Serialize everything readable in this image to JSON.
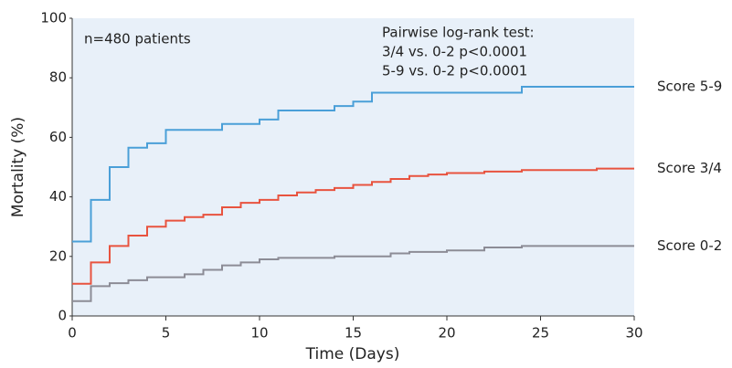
{
  "chart_data": {
    "type": "step",
    "xlabel": "Time (Days)",
    "ylabel": "Mortality (%)",
    "annotations": [
      "n=480 patients",
      "Pairwise log-rank test:",
      "3/4 vs. 0-2 p<0.0001",
      "5-9 vs. 0-2 p<0.0001"
    ],
    "xlim": [
      0,
      30
    ],
    "xticks": [
      0,
      5,
      10,
      15,
      20,
      25,
      30
    ],
    "ylim": [
      0,
      100
    ],
    "yticks": [
      0,
      20,
      40,
      60,
      80,
      100
    ],
    "background": "#e8f0f9",
    "series": [
      {
        "name": "Score 5-9",
        "color": "#4a9fd8",
        "x": [
          0,
          1,
          2,
          3,
          4,
          5,
          8,
          10,
          11,
          14,
          15,
          16,
          24,
          30
        ],
        "values": [
          25,
          39,
          50,
          56.5,
          58,
          62.5,
          64.5,
          66,
          69,
          70.5,
          72,
          75,
          77,
          77
        ]
      },
      {
        "name": "Score 3/4",
        "color": "#e8533f",
        "x": [
          0,
          1,
          2,
          3,
          4,
          5,
          6,
          7,
          8,
          9,
          10,
          11,
          12,
          13,
          14,
          15,
          16,
          17,
          18,
          19,
          20,
          22,
          24,
          28,
          30
        ],
        "values": [
          10.8,
          18,
          23.5,
          27,
          30,
          32,
          33.2,
          34,
          36.5,
          38,
          39,
          40.5,
          41.5,
          42.3,
          43,
          44,
          45,
          46,
          47,
          47.5,
          48,
          48.5,
          49,
          49.5,
          49.5
        ]
      },
      {
        "name": "Score 0-2",
        "color": "#8c8c96",
        "x": [
          0,
          1,
          2,
          3,
          4,
          6,
          7,
          8,
          9,
          10,
          11,
          14,
          17,
          18,
          20,
          22,
          24,
          30
        ],
        "values": [
          5,
          10,
          11,
          12,
          13,
          14,
          15.5,
          17,
          18,
          19,
          19.5,
          20,
          21,
          21.5,
          22,
          23,
          23.5,
          23.5
        ]
      }
    ]
  }
}
